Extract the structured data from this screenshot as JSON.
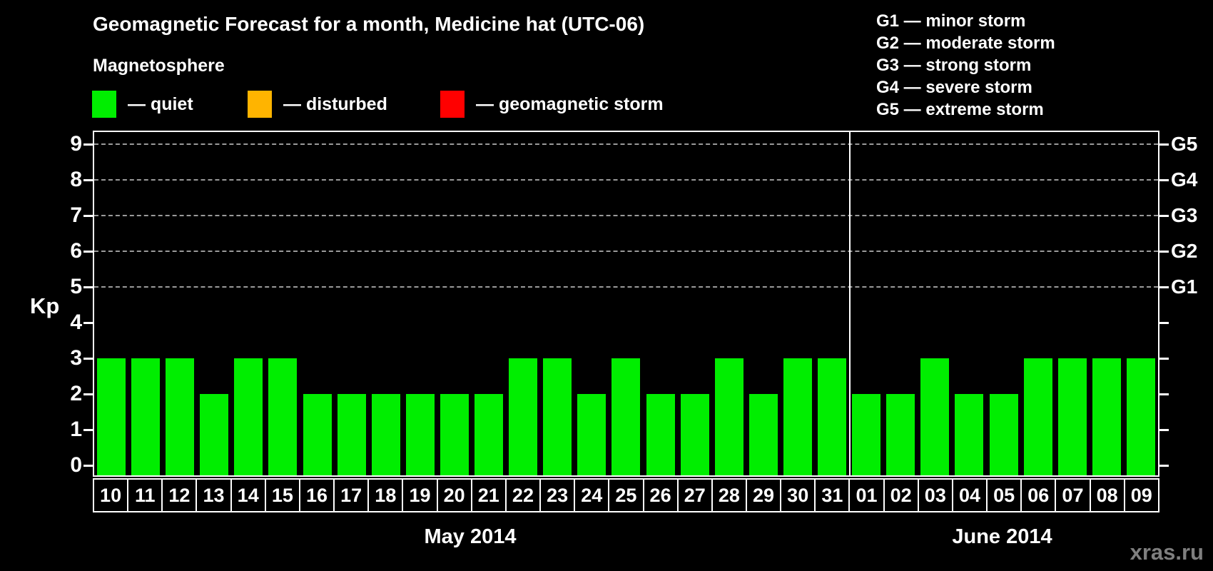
{
  "header": {
    "title": "Geomagnetic Forecast for a month, Medicine hat (UTC-06)"
  },
  "magnetosphere_legend": {
    "title": "Magnetosphere",
    "items": [
      {
        "key": "quiet",
        "label": "— quiet",
        "color": "#00ee00"
      },
      {
        "key": "disturbed",
        "label": "— disturbed",
        "color": "#ffb400"
      },
      {
        "key": "storm",
        "label": "— geomagnetic storm",
        "color": "#ff0000"
      }
    ]
  },
  "g_scale_legend": [
    "G1 — minor storm",
    "G2 — moderate storm",
    "G3 — strong storm",
    "G4 — severe storm",
    "G5 — extreme storm"
  ],
  "axes": {
    "y_label": "Kp",
    "y_ticks": [
      "0",
      "1",
      "2",
      "3",
      "4",
      "5",
      "6",
      "7",
      "8",
      "9"
    ],
    "g_levels": [
      {
        "label": "G1",
        "kp": 5
      },
      {
        "label": "G2",
        "kp": 6
      },
      {
        "label": "G3",
        "kp": 7
      },
      {
        "label": "G4",
        "kp": 8
      },
      {
        "label": "G5",
        "kp": 9
      }
    ]
  },
  "watermark": "xras.ru",
  "colors": {
    "background": "#000000",
    "axis": "#ffffff",
    "grid": "#9a9a9a",
    "quiet": "#00ee00",
    "disturbed": "#ffb400",
    "storm": "#ff0000",
    "watermark": "#7f7f7f"
  },
  "chart_data": {
    "type": "bar",
    "title": "Geomagnetic Forecast for a month, Medicine hat (UTC-06)",
    "xlabel": "",
    "ylabel": "Kp",
    "ylim": [
      0,
      9
    ],
    "grid": "dashed horizontal lines at Kp 5-9 (G1-G5)",
    "legend_position": "top",
    "months": [
      {
        "label": "May 2014",
        "days": [
          "10",
          "11",
          "12",
          "13",
          "14",
          "15",
          "16",
          "17",
          "18",
          "19",
          "20",
          "21",
          "22",
          "23",
          "24",
          "25",
          "26",
          "27",
          "28",
          "29",
          "30",
          "31"
        ],
        "values": [
          3,
          3,
          3,
          2,
          3,
          3,
          2,
          2,
          2,
          2,
          2,
          2,
          3,
          3,
          2,
          3,
          2,
          2,
          3,
          2,
          3,
          3
        ]
      },
      {
        "label": "June 2014",
        "days": [
          "01",
          "02",
          "03",
          "04",
          "05",
          "06",
          "07",
          "08",
          "09"
        ],
        "values": [
          2,
          2,
          3,
          2,
          2,
          3,
          3,
          3,
          3
        ]
      }
    ]
  }
}
